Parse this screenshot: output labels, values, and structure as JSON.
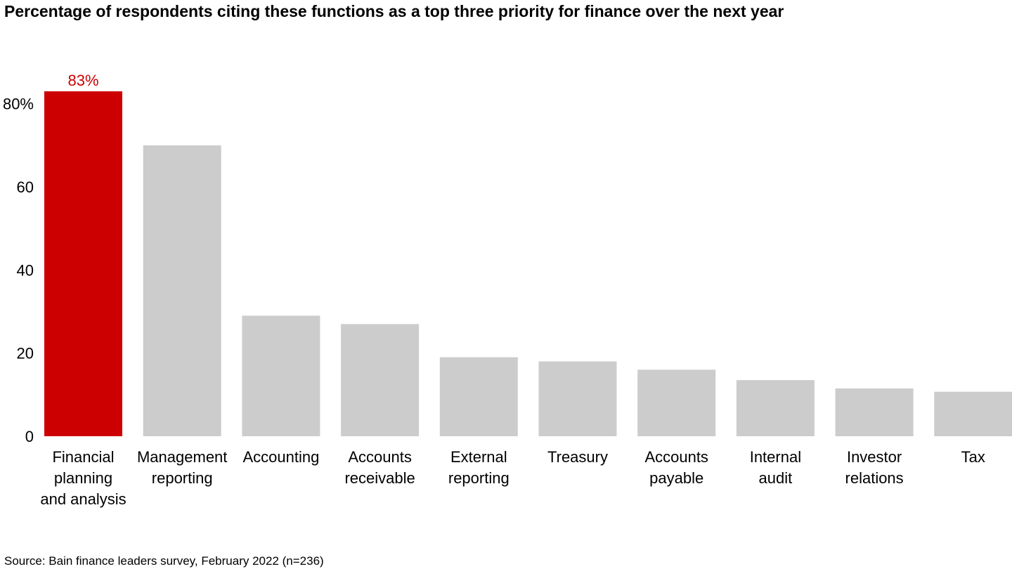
{
  "chart_data": {
    "type": "bar",
    "title": "Percentage of respondents citing these functions as a top three priority for finance over the next year",
    "categories": [
      "Financial planning and analysis",
      "Management reporting",
      "Accounting",
      "Accounts receivable",
      "External reporting",
      "Treasury",
      "Accounts payable",
      "Internal audit",
      "Investor relations",
      "Tax"
    ],
    "category_lines": [
      [
        "Financial",
        "planning",
        "and analysis"
      ],
      [
        "Management",
        "reporting"
      ],
      [
        "Accounting"
      ],
      [
        "Accounts",
        "receivable"
      ],
      [
        "External",
        "reporting"
      ],
      [
        "Treasury"
      ],
      [
        "Accounts",
        "payable"
      ],
      [
        "Internal",
        "audit"
      ],
      [
        "Investor",
        "relations"
      ],
      [
        "Tax"
      ]
    ],
    "values": [
      83,
      70,
      29,
      27,
      19,
      18,
      16,
      13.5,
      11.5,
      10.7
    ],
    "data_labels": [
      "83%",
      "",
      "",
      "",
      "",
      "",
      "",
      "",
      "",
      ""
    ],
    "highlight_index": 0,
    "y_ticks": [
      0,
      20,
      40,
      60,
      80
    ],
    "y_tick_labels": [
      "0",
      "20",
      "40",
      "60",
      "80%"
    ],
    "ylim": [
      0,
      83
    ],
    "xlabel": "",
    "ylabel": "",
    "grid": false,
    "colors": {
      "highlight": "#cc0000",
      "default": "#cccccc",
      "text": "#000000"
    }
  },
  "source": "Source: Bain finance leaders survey, February 2022 (n=236)"
}
